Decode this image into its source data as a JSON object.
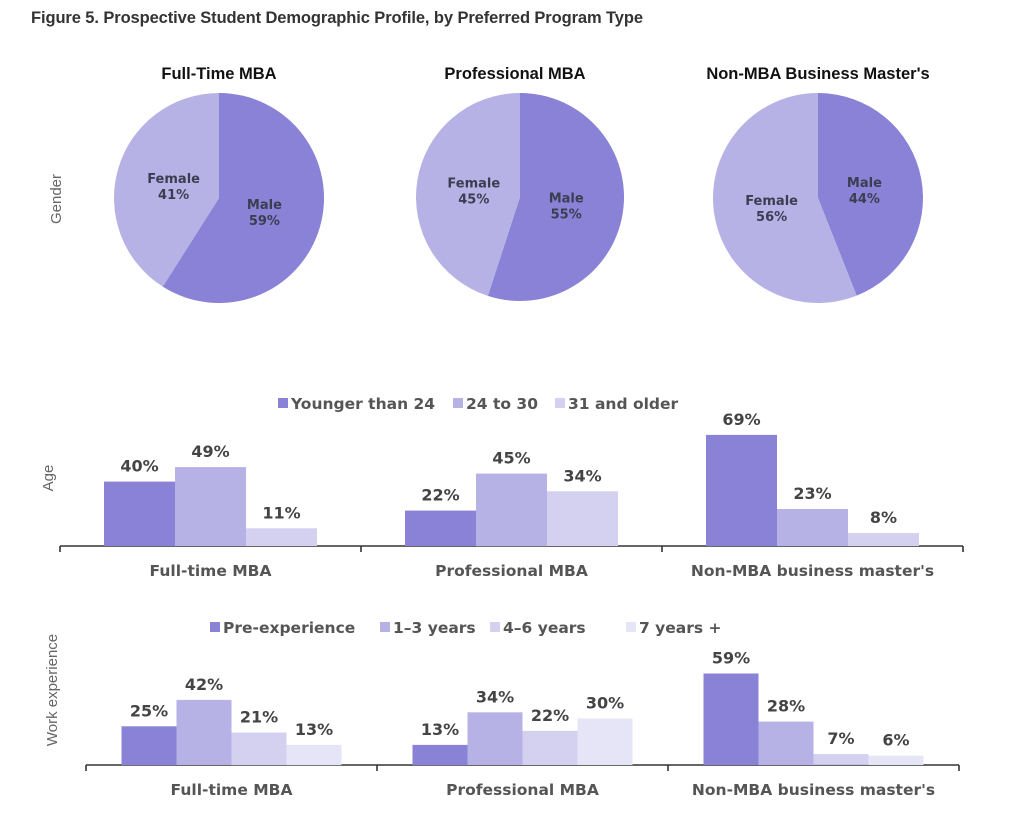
{
  "title": "Figure 5. Prospective Student Demographic Profile, by Preferred Program Type",
  "colors": {
    "c1": "#8982d6",
    "c2": "#b7b2e6",
    "c3": "#d3d0f0",
    "c4": "#e6e4f7",
    "axis": "#333333"
  },
  "chart_data": [
    {
      "type": "pie",
      "row_label": "Gender",
      "charts": [
        {
          "title": "Full-Time MBA",
          "slices": [
            {
              "label": "Male",
              "value": 59,
              "text": "59%"
            },
            {
              "label": "Female",
              "value": 41,
              "text": "41%"
            }
          ]
        },
        {
          "title": "Professional MBA",
          "slices": [
            {
              "label": "Male",
              "value": 55,
              "text": "55%"
            },
            {
              "label": "Female",
              "value": 45,
              "text": "45%"
            }
          ]
        },
        {
          "title": "Non-MBA Business Master's",
          "slices": [
            {
              "label": "Male",
              "value": 44,
              "text": "44%"
            },
            {
              "label": "Female",
              "value": 56,
              "text": "56%"
            }
          ]
        }
      ]
    },
    {
      "type": "bar",
      "row_label": "Age",
      "categories": [
        "Full-time MBA",
        "Professional MBA",
        "Non-MBA business master's"
      ],
      "legend": "top",
      "ylim": [
        0,
        75
      ],
      "series": [
        {
          "name": "Younger than 24",
          "values": [
            40,
            22,
            69
          ],
          "labels": [
            "40%",
            "22%",
            "69%"
          ]
        },
        {
          "name": "24 to 30",
          "values": [
            49,
            45,
            23
          ],
          "labels": [
            "49%",
            "45%",
            "23%"
          ]
        },
        {
          "name": "31 and older",
          "values": [
            11,
            34,
            8
          ],
          "labels": [
            "11%",
            "34%",
            "8%"
          ]
        }
      ]
    },
    {
      "type": "bar",
      "row_label": "Work experience",
      "categories": [
        "Full-time MBA",
        "Professional MBA",
        "Non-MBA business master's"
      ],
      "legend": "top",
      "ylim": [
        0,
        65
      ],
      "series": [
        {
          "name": "Pre-experience",
          "values": [
            25,
            13,
            59
          ],
          "labels": [
            "25%",
            "13%",
            "59%"
          ]
        },
        {
          "name": "1–3 years",
          "values": [
            42,
            34,
            28
          ],
          "labels": [
            "42%",
            "34%",
            "28%"
          ]
        },
        {
          "name": "4–6 years",
          "values": [
            21,
            22,
            7
          ],
          "labels": [
            "21%",
            "22%",
            "7%"
          ]
        },
        {
          "name": "7 years +",
          "values": [
            13,
            30,
            6
          ],
          "labels": [
            "13%",
            "30%",
            "6%"
          ]
        }
      ]
    }
  ]
}
